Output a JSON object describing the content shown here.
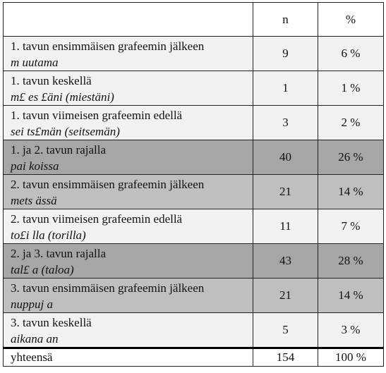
{
  "header": {
    "label": "",
    "n": "n",
    "pct": "%"
  },
  "rows": [
    {
      "label": "1. tavun ensimmäisen grafeemin jälkeen",
      "example": "m uutama",
      "n": "9",
      "pct": "6 %",
      "shade": "light"
    },
    {
      "label": "1. tavun keskellä",
      "example": "m£ es £äni (miestäni)",
      "n": "1",
      "pct": "1 %",
      "shade": "light"
    },
    {
      "label": "1. tavun viimeisen grafeemin edellä",
      "example": "sei ts£män (seitsemän)",
      "n": "3",
      "pct": "2 %",
      "shade": "light"
    },
    {
      "label": "1. ja 2. tavun rajalla",
      "example": "pai koissa",
      "n": "40",
      "pct": "26 %",
      "shade": "dark"
    },
    {
      "label": "2. tavun ensimmäisen grafeemin jälkeen",
      "example": "mets ässä",
      "n": "21",
      "pct": "14 %",
      "shade": "mid"
    },
    {
      "label": "2. tavun viimeisen grafeemin edellä",
      "example": "to£i lla (torilla)",
      "n": "11",
      "pct": "7 %",
      "shade": "light"
    },
    {
      "label": "2. ja 3. tavun rajalla",
      "example": "tal£ a (taloa)",
      "n": "43",
      "pct": "28 %",
      "shade": "dark"
    },
    {
      "label": "3. tavun ensimmäisen grafeemin jälkeen",
      "example": "nuppuj a",
      "n": "21",
      "pct": "14 %",
      "shade": "mid"
    },
    {
      "label": "3. tavun keskellä",
      "example": "aikana an",
      "n": "5",
      "pct": "3 %",
      "shade": "light"
    }
  ],
  "total": {
    "label": "yhteensä",
    "n": "154",
    "pct": "100 %"
  },
  "colors": {
    "light": "#f2f2f2",
    "mid": "#bfbfbf",
    "dark": "#a6a6a6",
    "white": "#ffffff"
  }
}
